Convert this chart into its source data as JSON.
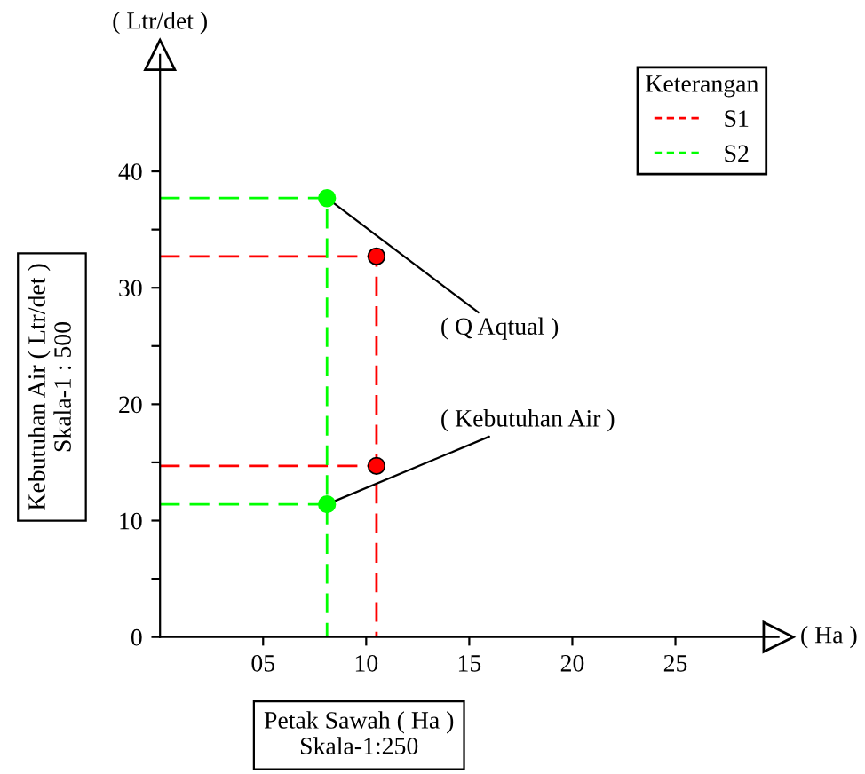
{
  "chart_data": {
    "type": "scatter",
    "xlabel": "Petak Sawah ( Ha )\nSkala-1:250",
    "ylabel": "Kebutuhan Air ( Ltr/det )\nSkala-1 : 500",
    "legend_title": "Keterangan",
    "series": [
      {
        "name": "S1",
        "color": "#ff0000",
        "marker": "circle",
        "x": [
          10.5,
          10.5
        ],
        "values": [
          32.7,
          14.7
        ]
      },
      {
        "name": "S2",
        "color": "#00ff00",
        "marker": "circle",
        "x": [
          8.1,
          8.1
        ],
        "values": [
          37.7,
          11.4
        ]
      },
      {
        "type": "line",
        "color": "#ff0000",
        "marker": "none",
        "x": [
          0,
          10.5,
          10.5
        ],
        "values": [
          32.7,
          32.7,
          0
        ]
      },
      {
        "type": "line",
        "color": "#ff0000",
        "marker": "none",
        "x": [
          0,
          10.5
        ],
        "values": [
          14.7,
          14.7
        ]
      },
      {
        "type": "line",
        "color": "#00ff00",
        "marker": "none",
        "x": [
          0,
          8.1,
          8.1
        ],
        "values": [
          37.7,
          37.7,
          0
        ]
      },
      {
        "type": "line",
        "color": "#00ff00",
        "marker": "none",
        "x": [
          0,
          8.1
        ],
        "values": [
          11.4,
          11.4
        ]
      }
    ],
    "annotations": [
      "( Ltr/det )",
      "( Ha )",
      {
        "text": "( Q Aqtual )",
        "x": 8.1,
        "y": 37.7
      },
      {
        "text": "( Kebutuhan Air )",
        "x": 8.1,
        "y": 11.4
      }
    ],
    "xlim": [
      0,
      30
    ],
    "ylim": [
      0,
      50
    ],
    "xticks": [
      {
        "value": 5,
        "label": "05"
      },
      10,
      15,
      20,
      25
    ],
    "yticks": [
      0,
      {
        "value": 5,
        "label": null
      },
      10,
      {
        "value": 15,
        "label": null
      },
      20,
      {
        "value": 25,
        "label": null
      },
      30,
      {
        "value": 35,
        "label": null
      },
      40
    ],
    "line_style": "dashed",
    "legend": "top right",
    "grid": false
  }
}
